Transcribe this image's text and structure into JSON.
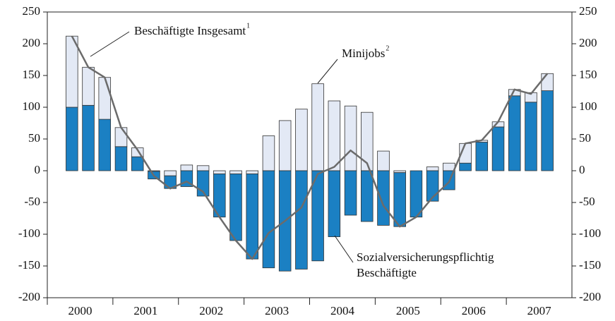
{
  "chart_data": {
    "type": "bar",
    "stacked": true,
    "categories": [
      null,
      null,
      null,
      null,
      null,
      null,
      null,
      null,
      null,
      null,
      null,
      null,
      null,
      null,
      null,
      null,
      null,
      null,
      null,
      null,
      null,
      null,
      null,
      null,
      null,
      null,
      null,
      null,
      null,
      null,
      null,
      null
    ],
    "year_labels": [
      "2000",
      "2001",
      "2002",
      "2003",
      "2004",
      "2005",
      "2006",
      "2007"
    ],
    "series": [
      {
        "name": "Sozialversicherungspflichtig Beschäftigte",
        "color": "#1b80c3",
        "values": [
          null,
          100,
          103,
          81,
          38,
          22,
          -12,
          -20,
          -25,
          -40,
          -68,
          -105,
          -134,
          -153,
          -158,
          -155,
          -142,
          -104,
          -70,
          -80,
          -86,
          -85,
          -73,
          -48,
          -30,
          12,
          45,
          69,
          118,
          108,
          126,
          null
        ]
      },
      {
        "name": "Minijobs",
        "color": "#e3e9f5",
        "values": [
          null,
          112,
          60,
          66,
          30,
          14,
          -1,
          -8,
          9,
          8,
          -5,
          -5,
          -5,
          55,
          79,
          97,
          137,
          110,
          102,
          92,
          31,
          -3,
          0,
          6,
          12,
          31,
          3,
          8,
          10,
          15,
          27,
          null
        ]
      },
      {
        "name": "Beschäftigte Insgesamt",
        "type": "line",
        "color": "#6b6b6b",
        "values": [
          null,
          212,
          163,
          147,
          68,
          33,
          -8,
          -28,
          -17,
          -33,
          -73,
          -110,
          -139,
          -98,
          -79,
          -58,
          -5,
          6,
          32,
          12,
          -55,
          -88,
          -73,
          -42,
          -18,
          43,
          48,
          77,
          128,
          121,
          153,
          null
        ]
      }
    ],
    "annotations": [
      {
        "text": "Beschäftigte Insgesamt",
        "sup": "1"
      },
      {
        "text": "Minijobs",
        "sup": "2"
      },
      {
        "text": "Sozialversicherungspflichtig"
      },
      {
        "text": "Beschäftigte"
      }
    ],
    "ylim": [
      -200,
      250
    ],
    "yticks": [
      -200,
      -150,
      -100,
      -50,
      0,
      50,
      100,
      150,
      200,
      250
    ],
    "y2lim": [
      -200,
      250
    ],
    "y2ticks": [
      -200,
      -150,
      -100,
      -50,
      0,
      50,
      100,
      150,
      200,
      250
    ],
    "grid": false
  }
}
